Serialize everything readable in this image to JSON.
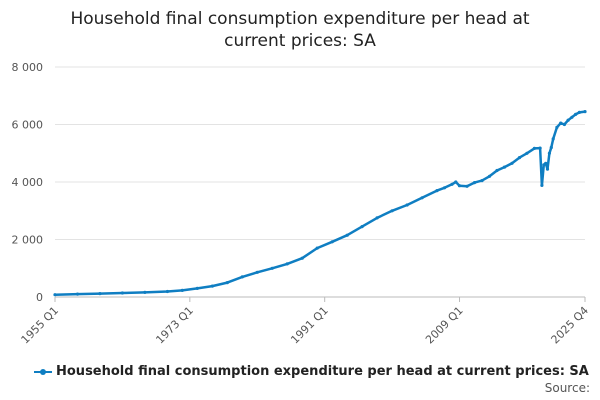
{
  "chart_data": {
    "type": "line",
    "title_lines": [
      "Household final consumption expenditure per head at",
      "current prices: SA"
    ],
    "xlabel": "",
    "ylabel": "",
    "ylim": [
      0,
      8000
    ],
    "yticks": [
      0,
      2000,
      4000,
      6000,
      8000
    ],
    "ytick_labels": [
      "0",
      "2 000",
      "4 000",
      "6 000",
      "8 000"
    ],
    "xlim": [
      1955.0,
      2025.75
    ],
    "xticks": [
      1955.0,
      1973.0,
      1991.0,
      2009.0,
      2025.75
    ],
    "xtick_labels": [
      "1955 Q1",
      "1973 Q1",
      "1991 Q1",
      "2009 Q1",
      "2025 Q4"
    ],
    "grid": true,
    "legend_position": "bottom",
    "series": [
      {
        "name": "Household final consumption expenditure per head at current prices: SA",
        "color": "#0f7ec2",
        "x": [
          1955,
          1958,
          1961,
          1964,
          1967,
          1970,
          1972,
          1974,
          1976,
          1978,
          1980,
          1982,
          1984,
          1986,
          1988,
          1990,
          1992,
          1994,
          1996,
          1998,
          2000,
          2002,
          2004,
          2006,
          2007,
          2008,
          2008.5,
          2009,
          2010,
          2011,
          2012,
          2013,
          2014,
          2015,
          2016,
          2017,
          2018,
          2019,
          2019.75,
          2020.0,
          2020.25,
          2020.5,
          2020.75,
          2021.0,
          2021.25,
          2021.5,
          2022,
          2022.5,
          2023,
          2023.5,
          2024,
          2024.5,
          2025,
          2025.75
        ],
        "values": [
          80,
          100,
          120,
          140,
          160,
          190,
          230,
          300,
          380,
          500,
          700,
          860,
          1000,
          1150,
          1350,
          1700,
          1920,
          2150,
          2450,
          2750,
          3000,
          3200,
          3450,
          3700,
          3800,
          3920,
          4000,
          3870,
          3850,
          3980,
          4050,
          4200,
          4400,
          4520,
          4650,
          4850,
          5000,
          5170,
          5180,
          3880,
          4600,
          4650,
          4450,
          5000,
          5200,
          5500,
          5900,
          6050,
          6000,
          6150,
          6250,
          6350,
          6420,
          6450
        ]
      }
    ]
  },
  "legend": {
    "label": "Household final consumption expenditure per head at current prices: SA"
  },
  "source": {
    "label": "Source:"
  }
}
